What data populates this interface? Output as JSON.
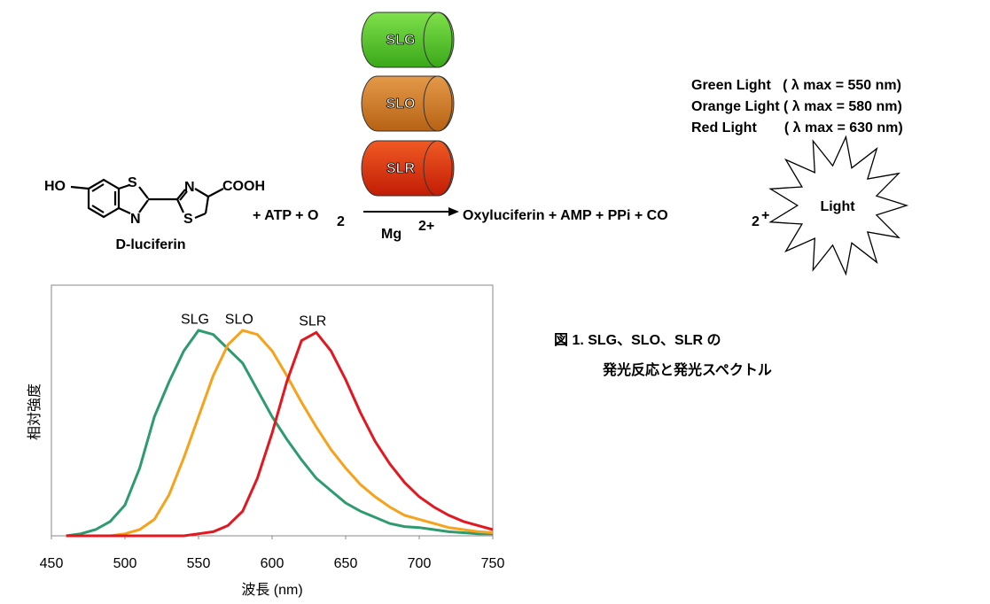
{
  "reaction": {
    "atoms": [
      "HO",
      "S",
      "N",
      "N",
      "S",
      "COOH"
    ],
    "reactant_label": "D-luciferin",
    "reagents": "+ ATP + O",
    "reagents_sub": "2",
    "cofactor": "Mg",
    "cofactor_sup": "2+",
    "products": "Oxyluciferin + AMP + PPi + CO",
    "products_sub": "2",
    "products_end": "+",
    "light": "Light"
  },
  "enzymes": [
    "SLG",
    "SLO",
    "SLR"
  ],
  "emission": [
    "Green Light   ( λ max = 550 nm)",
    "Orange Light ( λ max = 580 nm)",
    "Red Light       ( λ max = 630 nm)"
  ],
  "caption": [
    "図 1. SLG、SLO、SLR の",
    "発光反応と発光スペクトル"
  ],
  "chart_data": {
    "type": "line",
    "xlabel": "波長 (nm)",
    "ylabel": "相対強度",
    "x": [
      460,
      470,
      480,
      490,
      500,
      510,
      520,
      530,
      540,
      550,
      560,
      570,
      580,
      590,
      600,
      610,
      620,
      630,
      640,
      650,
      660,
      670,
      680,
      690,
      700,
      710,
      720,
      730,
      740,
      750
    ],
    "series": [
      {
        "name": "SLG",
        "color": "#2e9b6f",
        "values": [
          0,
          0.01,
          0.03,
          0.07,
          0.15,
          0.33,
          0.58,
          0.75,
          0.9,
          1.0,
          0.98,
          0.91,
          0.84,
          0.71,
          0.58,
          0.47,
          0.37,
          0.28,
          0.22,
          0.16,
          0.12,
          0.09,
          0.06,
          0.045,
          0.04,
          0.03,
          0.02,
          0.015,
          0.01,
          0.01
        ]
      },
      {
        "name": "SLO",
        "color": "#f7a21b",
        "values": [
          0,
          0,
          0,
          0,
          0.01,
          0.03,
          0.08,
          0.2,
          0.38,
          0.58,
          0.78,
          0.93,
          1.0,
          0.98,
          0.9,
          0.78,
          0.65,
          0.53,
          0.42,
          0.33,
          0.25,
          0.19,
          0.14,
          0.1,
          0.08,
          0.06,
          0.04,
          0.03,
          0.02,
          0.015
        ]
      },
      {
        "name": "SLR",
        "color": "#e3171f",
        "values": [
          0,
          0,
          0,
          0,
          0,
          0,
          0,
          0,
          0,
          0.01,
          0.02,
          0.05,
          0.12,
          0.28,
          0.5,
          0.75,
          0.95,
          0.99,
          0.9,
          0.76,
          0.6,
          0.46,
          0.35,
          0.26,
          0.19,
          0.14,
          0.1,
          0.07,
          0.05,
          0.03
        ]
      }
    ],
    "xlim": [
      450,
      750
    ],
    "xticks": [
      450,
      500,
      550,
      600,
      650,
      700,
      750
    ],
    "ylim": [
      0,
      1.22
    ]
  }
}
